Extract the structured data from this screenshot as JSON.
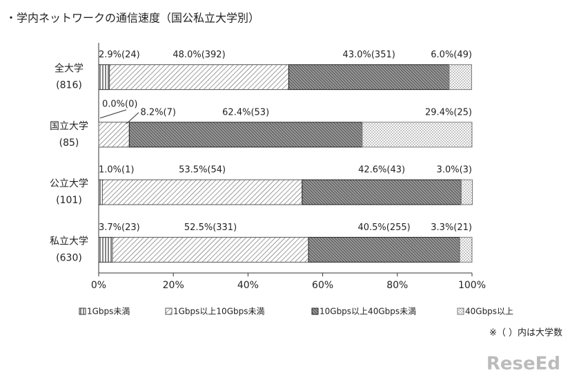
{
  "chart_data": {
    "type": "stacked-bar-horizontal",
    "title": "・学内ネットワークの通信速度（国公私立大学別）",
    "categories": [
      "全大学",
      "国立大学",
      "公立大学",
      "私立大学"
    ],
    "category_sublabels": [
      "(816)",
      "(85)",
      "(101)",
      "(630)"
    ],
    "series": [
      {
        "name": "1Gbps未満",
        "color": "#333333",
        "pattern": "vertical",
        "values": [
          2.9,
          0.0,
          1.0,
          3.7
        ],
        "value_labels": [
          "2.9%(24)",
          "0.0%(0)",
          "1.0%(1)",
          "3.7%(23)"
        ]
      },
      {
        "name": "1Gbps以上10Gbps未満",
        "color": "#555555",
        "pattern": "diagonal-light",
        "values": [
          48.0,
          8.2,
          53.5,
          52.5
        ],
        "value_labels": [
          "48.0%(392)",
          "8.2%(7)",
          "53.5%(54)",
          "52.5%(331)"
        ]
      },
      {
        "name": "10Gbps以上40Gbps未満",
        "color": "#222222",
        "pattern": "diagonal-dark",
        "values": [
          43.0,
          62.4,
          42.6,
          40.5
        ],
        "value_labels": [
          "43.0%(351)",
          "62.4%(53)",
          "42.6%(43)",
          "40.5%(255)"
        ]
      },
      {
        "name": "40Gbps以上",
        "color": "#777777",
        "pattern": "dots",
        "values": [
          6.0,
          29.4,
          3.0,
          3.3
        ],
        "value_labels": [
          "6.0%(49)",
          "29.4%(25)",
          "3.0%(3)",
          "3.3%(21)"
        ]
      }
    ],
    "xlim": [
      0,
      100
    ],
    "xticks": [
      {
        "value": 0,
        "label": "0%"
      },
      {
        "value": 20,
        "label": "20%"
      },
      {
        "value": 40,
        "label": "40%"
      },
      {
        "value": 60,
        "label": "60%"
      },
      {
        "value": 80,
        "label": "80%"
      },
      {
        "value": 100,
        "label": "100%"
      }
    ],
    "note": "※（ ）内は大学数",
    "watermark": "ReseEd"
  }
}
